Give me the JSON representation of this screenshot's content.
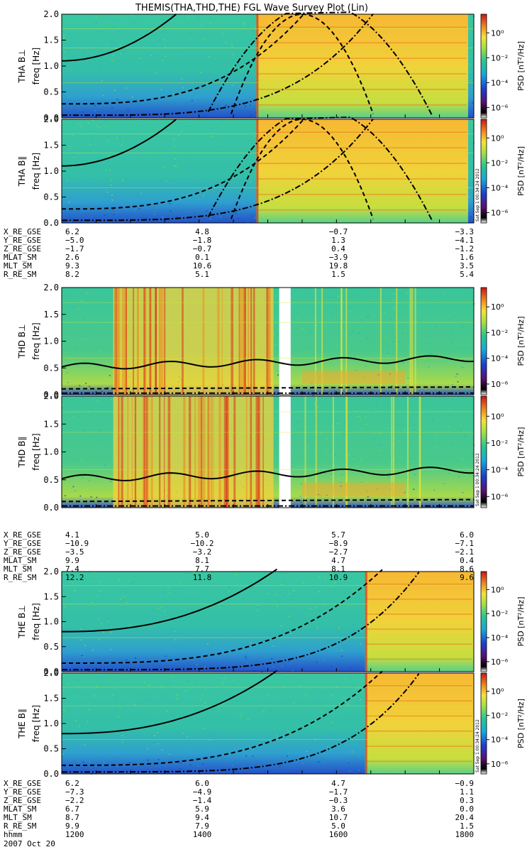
{
  "title": "THEMIS(THA,THD,THE) FGL Wave Survey Plot (Lin)",
  "freq_label": "freq [Hz]",
  "psd_label": "PSD [nT²/Hz]",
  "stamp": "Sat Sep 1 00:34:24 2012",
  "colorbar_ticks": [
    "10⁰",
    "10⁻²",
    "10⁻⁴",
    "10⁻⁶"
  ],
  "freq_ticks": [
    "2.0",
    "1.5",
    "1.0",
    "0.5",
    "0.0"
  ],
  "colors": {
    "background_spectrum": "#35c79a",
    "quiet_low": "#2a6ad8",
    "active": "#f4c23a",
    "intense": "#d9301c",
    "line": "#000000"
  },
  "chart_data": [
    {
      "type": "heatmap",
      "panel": "THA B⊥",
      "ylabel": "THA B⊥",
      "ylim": [
        0,
        2.0
      ],
      "colorbar_range_log10": [
        -6,
        1
      ],
      "x_hhmm": [
        "1200",
        "1400",
        "1600",
        "1800"
      ],
      "active_interval_hhmm": [
        "1450",
        "1755"
      ],
      "overlay_lines": [
        "solid",
        "dashed",
        "dash-dot"
      ]
    },
    {
      "type": "heatmap",
      "panel": "THA B∥",
      "ylabel": "THA B∥",
      "ylim": [
        0,
        2.0
      ],
      "colorbar_range_log10": [
        -6,
        1
      ],
      "x_hhmm": [
        "1200",
        "1400",
        "1600",
        "1800"
      ],
      "active_interval_hhmm": [
        "1450",
        "1755"
      ],
      "overlay_lines": [
        "solid",
        "dashed",
        "dash-dot"
      ]
    },
    {
      "type": "table",
      "probe": "THA",
      "rows": [
        {
          "name": "X_RE_GSE",
          "values": [
            "6.2",
            "4.8",
            "−0.7",
            "−3.3"
          ]
        },
        {
          "name": "Y_RE_GSE",
          "values": [
            "−5.0",
            "−1.8",
            "1.3",
            "−4.1"
          ]
        },
        {
          "name": "Z_RE_GSE",
          "values": [
            "−1.7",
            "−0.7",
            "0.4",
            "−1.2"
          ]
        },
        {
          "name": "MLAT_SM",
          "values": [
            "2.6",
            "0.1",
            "−3.9",
            "1.6"
          ]
        },
        {
          "name": "MLT_SM",
          "values": [
            "9.3",
            "10.6",
            "19.8",
            "3.5"
          ]
        },
        {
          "name": "R_RE_SM",
          "values": [
            "8.2",
            "5.1",
            "1.5",
            "5.4"
          ]
        }
      ]
    },
    {
      "type": "heatmap",
      "panel": "THD B⊥",
      "ylabel": "THD B⊥",
      "ylim": [
        0,
        2.0
      ],
      "colorbar_range_log10": [
        -6,
        1
      ],
      "x_hhmm": [
        "1200",
        "1400",
        "1600",
        "1800"
      ],
      "data_gap_hhmm": [
        "1510",
        "1520"
      ],
      "overlay_lines": [
        "solid",
        "dashed",
        "dash-dot"
      ]
    },
    {
      "type": "heatmap",
      "panel": "THD B∥",
      "ylabel": "THD B∥",
      "ylim": [
        0,
        2.0
      ],
      "colorbar_range_log10": [
        -6,
        1
      ],
      "x_hhmm": [
        "1200",
        "1400",
        "1600",
        "1800"
      ],
      "data_gap_hhmm": [
        "1510",
        "1520"
      ],
      "overlay_lines": [
        "solid",
        "dashed",
        "dash-dot"
      ]
    },
    {
      "type": "table",
      "probe": "THD",
      "rows": [
        {
          "name": "X_RE_GSE",
          "values": [
            "4.1",
            "5.0",
            "5.7",
            "6.0"
          ]
        },
        {
          "name": "Y_RE_GSE",
          "values": [
            "−10.9",
            "−10.2",
            "−8.9",
            "−7.1"
          ]
        },
        {
          "name": "Z_RE_GSE",
          "values": [
            "−3.5",
            "−3.2",
            "−2.7",
            "−2.1"
          ]
        },
        {
          "name": "MLAT_SM",
          "values": [
            "9.9",
            "8.1",
            "4.7",
            "0.4"
          ]
        },
        {
          "name": "MLT_SM",
          "values": [
            "7.4",
            "7.7",
            "8.1",
            "8.6"
          ]
        },
        {
          "name": "R_RE_SM",
          "values": [
            "12.2",
            "11.8",
            "10.9",
            "9.6"
          ]
        }
      ]
    },
    {
      "type": "heatmap",
      "panel": "THE B⊥",
      "ylabel": "THE B⊥",
      "ylim": [
        0,
        2.0
      ],
      "colorbar_range_log10": [
        -6,
        1
      ],
      "x_hhmm": [
        "1200",
        "1400",
        "1600",
        "1800"
      ],
      "active_interval_hhmm": [
        "1625",
        "1800"
      ],
      "overlay_lines": [
        "solid",
        "dashed",
        "dash-dot"
      ]
    },
    {
      "type": "heatmap",
      "panel": "THE B∥",
      "ylabel": "THE B∥",
      "ylim": [
        0,
        2.0
      ],
      "colorbar_range_log10": [
        -6,
        1
      ],
      "x_hhmm": [
        "1200",
        "1400",
        "1600",
        "1800"
      ],
      "active_interval_hhmm": [
        "1625",
        "1800"
      ],
      "overlay_lines": [
        "solid",
        "dashed",
        "dash-dot"
      ]
    },
    {
      "type": "table",
      "probe": "THE",
      "rows": [
        {
          "name": "X_RE_GSE",
          "values": [
            "6.2",
            "6.0",
            "4.7",
            "−0.9"
          ]
        },
        {
          "name": "Y_RE_GSE",
          "values": [
            "−7.3",
            "−4.9",
            "−1.7",
            "1.1"
          ]
        },
        {
          "name": "Z_RE_GSE",
          "values": [
            "−2.2",
            "−1.4",
            "−0.3",
            "0.3"
          ]
        },
        {
          "name": "MLAT_SM",
          "values": [
            "6.7",
            "5.9",
            "3.6",
            "0.0"
          ]
        },
        {
          "name": "MLT_SM",
          "values": [
            "8.7",
            "9.4",
            "10.7",
            "20.4"
          ]
        },
        {
          "name": "R_RE_SM",
          "values": [
            "9.9",
            "7.9",
            "5.0",
            "1.5"
          ]
        },
        {
          "name": "hhmm",
          "values": [
            "1200",
            "1400",
            "1600",
            "1800"
          ]
        }
      ]
    }
  ],
  "date": "2007 Oct 20"
}
